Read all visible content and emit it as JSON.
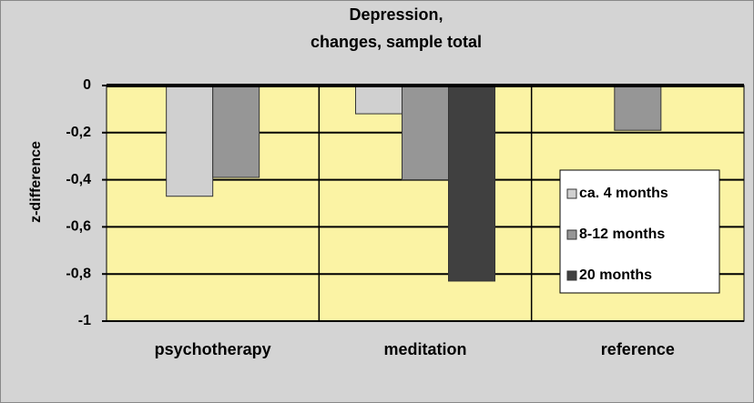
{
  "chart_data": {
    "type": "bar",
    "title": [
      "Depression,",
      "changes, sample total"
    ],
    "y_label": "z-difference",
    "categories": [
      "psychotherapy",
      "meditation",
      "reference"
    ],
    "series": [
      {
        "name": "ca. 4 months",
        "color": "#d0d0d0",
        "values": [
          -0.47,
          -0.12,
          null
        ]
      },
      {
        "name": "8-12 months",
        "color": "#969696",
        "values": [
          -0.39,
          -0.4,
          -0.19
        ]
      },
      {
        "name": "20 months",
        "color": "#404040",
        "values": [
          null,
          -0.83,
          null
        ]
      }
    ],
    "ylim": [
      -1,
      0
    ],
    "yticks": [
      0,
      {
        "value": -0.2,
        "label": "-0,2"
      },
      {
        "value": -0.4,
        "label": "-0,4"
      },
      {
        "value": -0.6,
        "label": "-0,6"
      },
      {
        "value": -0.8,
        "label": "-0,8"
      },
      -1
    ],
    "grid": true,
    "plot_background": "#fbf3a4",
    "legend": "right"
  }
}
